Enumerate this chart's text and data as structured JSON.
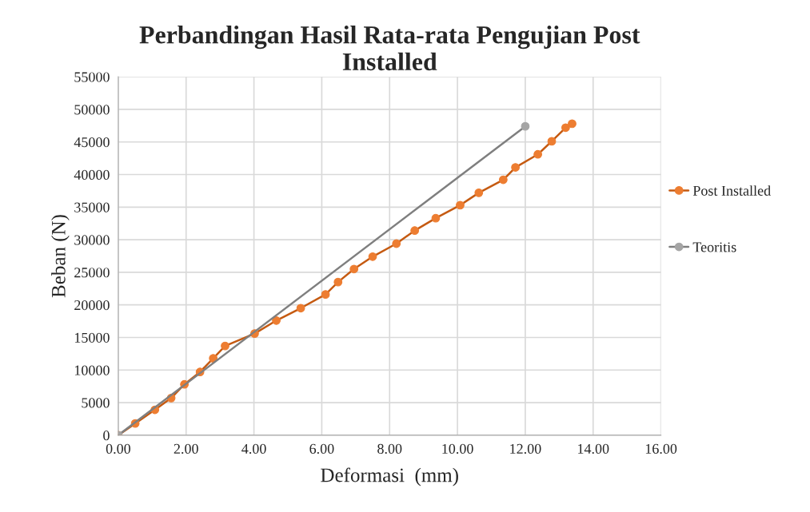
{
  "chart_data": {
    "type": "line",
    "title": "Perbandingan Hasil Rata-rata Pengujian Post\nInstalled",
    "xlabel": "Deformasi  (mm)",
    "ylabel": "Beban (N)",
    "xlim": [
      0,
      16
    ],
    "xticks": [
      {
        "value": 0,
        "label": "0.00"
      },
      {
        "value": 2,
        "label": "2.00"
      },
      {
        "value": 4,
        "label": "4.00"
      },
      {
        "value": 6,
        "label": "6.00"
      },
      {
        "value": 8,
        "label": "8.00"
      },
      {
        "value": 10,
        "label": "10.00"
      },
      {
        "value": 12,
        "label": "12.00"
      },
      {
        "value": 14,
        "label": "14.00"
      },
      {
        "value": 16,
        "label": "16.00"
      }
    ],
    "ylim": [
      0,
      55000
    ],
    "yticks": [
      0,
      5000,
      10000,
      15000,
      20000,
      25000,
      30000,
      35000,
      40000,
      45000,
      50000,
      55000
    ],
    "grid": true,
    "legend": "right",
    "marker": "circle",
    "series": [
      {
        "name": "Post Installed",
        "color": "#c55a11",
        "x": [
          0,
          0.5,
          1.08,
          1.56,
          1.95,
          2.41,
          2.8,
          3.15,
          4.02,
          4.66,
          5.38,
          6.11,
          6.48,
          6.95,
          7.5,
          8.2,
          8.74,
          9.36,
          10.08,
          10.63,
          11.35,
          11.71,
          12.37,
          12.78,
          13.19,
          13.38
        ],
        "values": [
          0,
          1800,
          3900,
          5700,
          7800,
          9700,
          11800,
          13700,
          15600,
          17600,
          19500,
          21600,
          23500,
          25500,
          27400,
          29400,
          31400,
          33300,
          35300,
          37200,
          39200,
          41100,
          43100,
          45100,
          47200,
          47800
        ]
      },
      {
        "name": "Teoritis",
        "color": "#7f7f7f",
        "x": [
          0,
          12
        ],
        "values": [
          0,
          47400
        ]
      }
    ]
  }
}
